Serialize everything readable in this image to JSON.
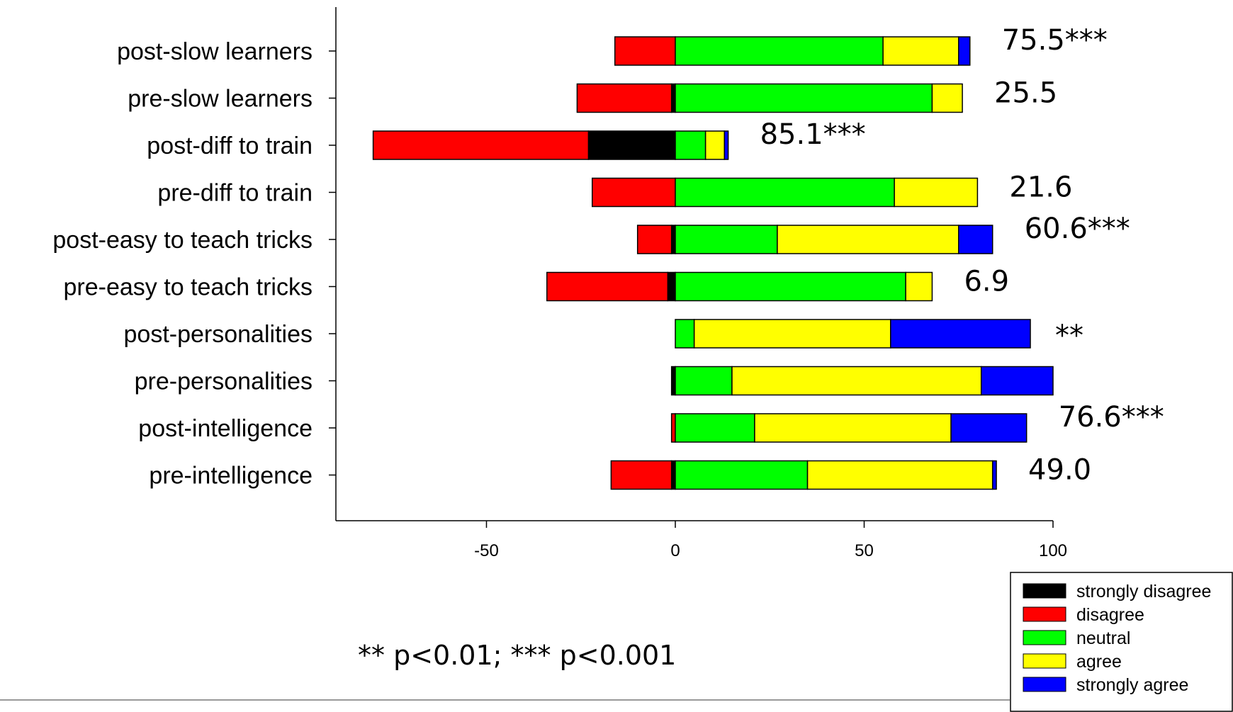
{
  "chart_data": {
    "type": "bar",
    "orientation": "horizontal",
    "stacked": true,
    "diverging": true,
    "categories": [
      "post-slow learners",
      "pre-slow learners",
      "post-diff to train",
      "pre-diff to train",
      "post-easy to teach tricks",
      "pre-easy to teach tricks",
      "post-personalities",
      "pre-personalities",
      "post-intelligence",
      "pre-intelligence"
    ],
    "series": [
      {
        "name": "strongly disagree",
        "color": "#000000",
        "values": [
          0,
          1,
          23,
          0,
          1,
          2,
          0,
          1,
          0,
          1
        ]
      },
      {
        "name": "disagree",
        "color": "#ff0000",
        "values": [
          16,
          25,
          57,
          22,
          9,
          32,
          0,
          0,
          1,
          16
        ]
      },
      {
        "name": "neutral",
        "color": "#00ff00",
        "values": [
          55,
          68,
          8,
          58,
          27,
          61,
          5,
          15,
          21,
          35
        ]
      },
      {
        "name": "agree",
        "color": "#ffff00",
        "values": [
          20,
          8,
          5,
          22,
          48,
          7,
          52,
          66,
          52,
          49
        ]
      },
      {
        "name": "strongly agree",
        "color": "#0000ff",
        "values": [
          3,
          0,
          1,
          0,
          9,
          0,
          37,
          19,
          20,
          1
        ]
      }
    ],
    "negative_series": [
      "strongly disagree",
      "disagree"
    ],
    "neutral_series": "neutral",
    "annotations": [
      "75.5***",
      "25.5",
      "85.1***",
      "21.6",
      "60.6***",
      "6.9",
      "**",
      "",
      "76.6***",
      "49.0"
    ],
    "xlim": [
      -90,
      100
    ],
    "xticks": [
      -50,
      0,
      50,
      100
    ],
    "footnote": "** p<0.01; *** p<0.001",
    "legend_position": "bottom-right"
  }
}
